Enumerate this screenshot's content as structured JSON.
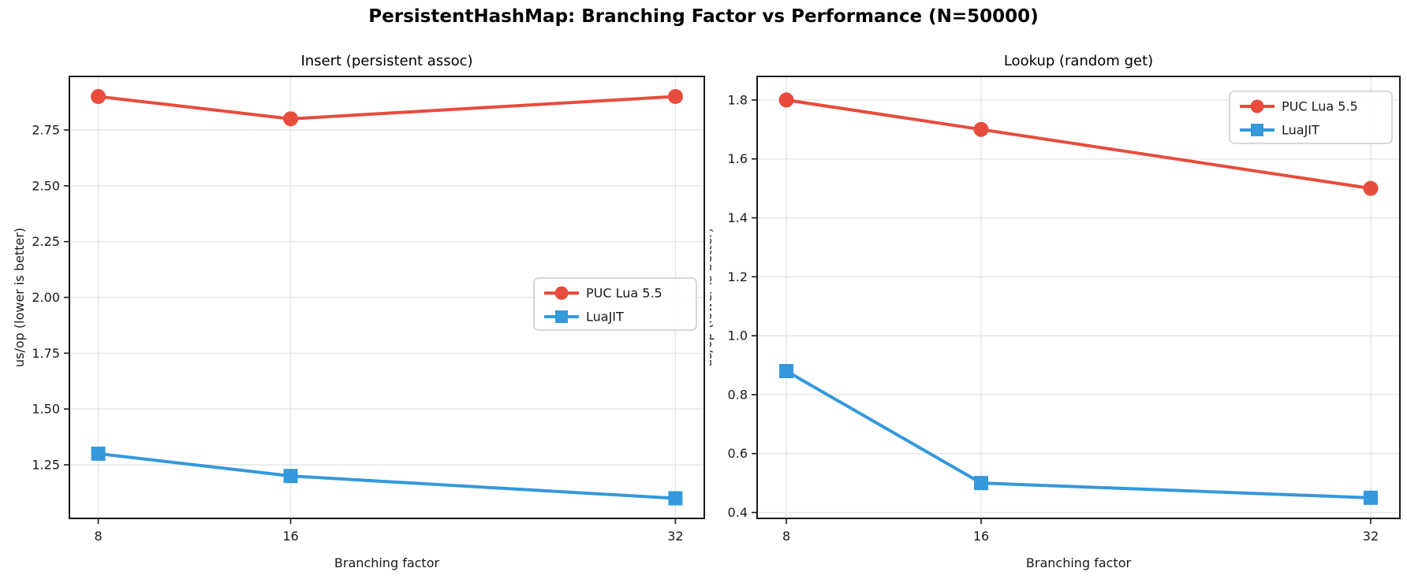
{
  "figure": {
    "title": "PersistentHashMap: Branching Factor vs Performance (N=50000)"
  },
  "colors": {
    "puc_lua": "#e74c3c",
    "luajit": "#3498db",
    "grid": "#e6e6e6",
    "spine": "#1a1a1a",
    "text": "#1a1a1a",
    "legend_border": "#cccccc",
    "background": "#ffffff"
  },
  "chart_data": [
    {
      "type": "line",
      "title": "Insert (persistent assoc)",
      "xlabel": "Branching factor",
      "ylabel": "us/op (lower is better)",
      "x": [
        8,
        16,
        32
      ],
      "xtick_labels": [
        "8",
        "16",
        "32"
      ],
      "series": [
        {
          "name": "PUC Lua 5.5",
          "values": [
            2.9,
            2.8,
            2.9
          ],
          "color": "#e74c3c",
          "marker": "circle"
        },
        {
          "name": "LuaJIT",
          "values": [
            1.3,
            1.2,
            1.1
          ],
          "color": "#3498db",
          "marker": "square"
        }
      ],
      "xlim": [
        6.8,
        33.2
      ],
      "ylim": [
        1.01,
        2.99
      ],
      "yticks": [
        1.25,
        1.5,
        1.75,
        2.0,
        2.25,
        2.5,
        2.75
      ],
      "ytick_labels": [
        "1.25",
        "1.50",
        "1.75",
        "2.00",
        "2.25",
        "2.50",
        "2.75"
      ],
      "grid": true,
      "legend_position": "center-right"
    },
    {
      "type": "line",
      "title": "Lookup (random get)",
      "xlabel": "Branching factor",
      "ylabel": "us/op (lower is better)",
      "x": [
        8,
        16,
        32
      ],
      "xtick_labels": [
        "8",
        "16",
        "32"
      ],
      "series": [
        {
          "name": "PUC Lua 5.5",
          "values": [
            1.8,
            1.7,
            1.5
          ],
          "color": "#e74c3c",
          "marker": "circle"
        },
        {
          "name": "LuaJIT",
          "values": [
            0.88,
            0.5,
            0.45
          ],
          "color": "#3498db",
          "marker": "square"
        }
      ],
      "xlim": [
        6.8,
        33.2
      ],
      "ylim": [
        0.38,
        1.88
      ],
      "yticks": [
        0.4,
        0.6,
        0.8,
        1.0,
        1.2,
        1.4,
        1.6,
        1.8
      ],
      "ytick_labels": [
        "0.4",
        "0.6",
        "0.8",
        "1.0",
        "1.2",
        "1.4",
        "1.6",
        "1.8"
      ],
      "grid": true,
      "legend_position": "upper-right"
    }
  ]
}
